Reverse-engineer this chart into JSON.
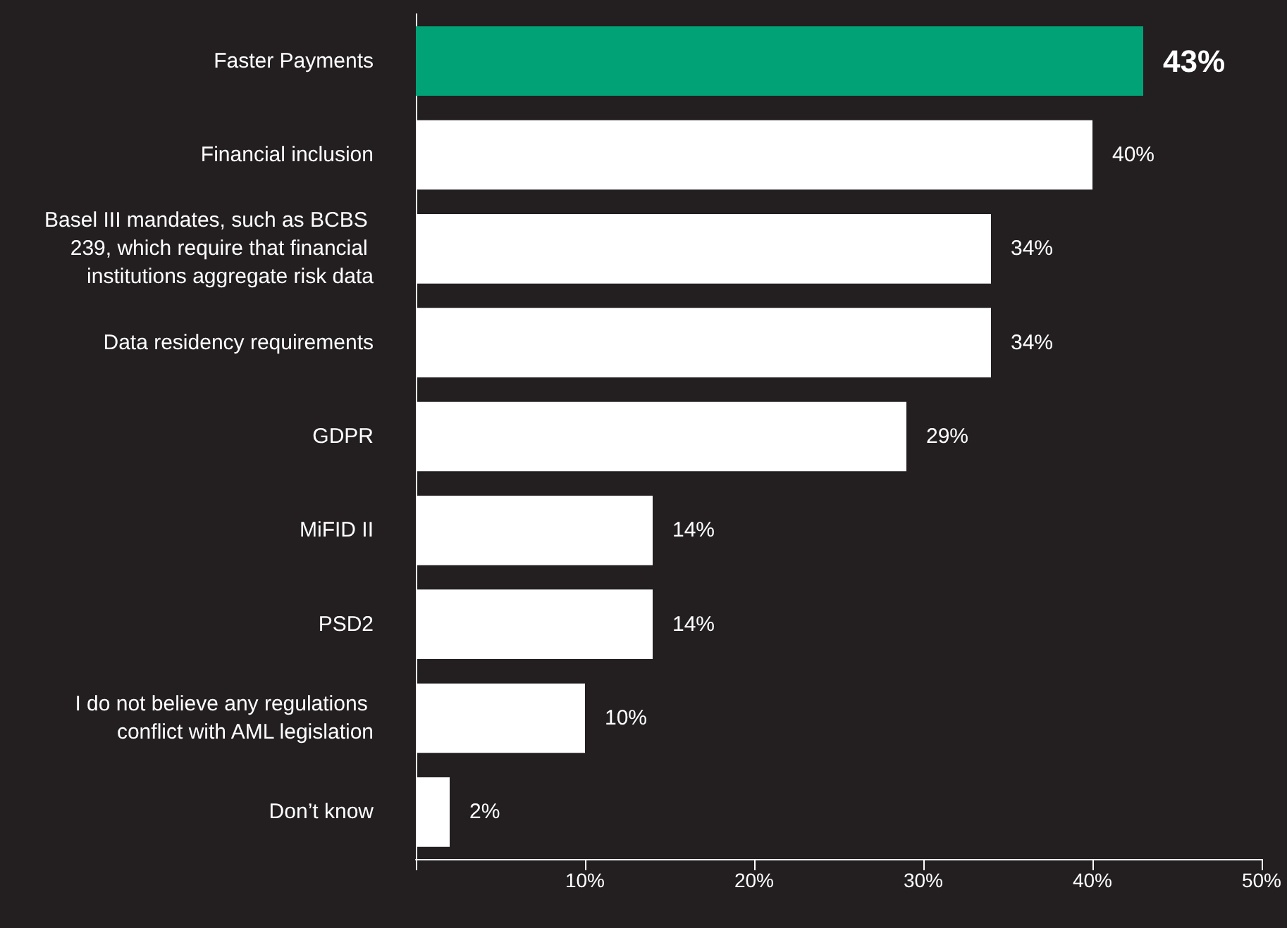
{
  "chart_data": {
    "type": "bar",
    "orientation": "horizontal",
    "categories": [
      "Faster Payments",
      "Financial inclusion",
      "Basel III mandates, such as BCBS 239, which require that financial institutions aggregate risk data",
      "Data residency requirements",
      "GDPR",
      "MiFID II",
      "PSD2",
      "I do not believe any regulations conflict with AML legislation",
      "Don’t know"
    ],
    "values": [
      43,
      40,
      34,
      34,
      29,
      14,
      14,
      10,
      2
    ],
    "colors": [
      "#00a276",
      "#ffffff",
      "#ffffff",
      "#ffffff",
      "#ffffff",
      "#ffffff",
      "#ffffff",
      "#ffffff",
      "#ffffff"
    ],
    "value_labels": [
      "43%",
      "40%",
      "34%",
      "34%",
      "29%",
      "14%",
      "14%",
      "10%",
      "2%"
    ],
    "xlim": [
      0,
      50
    ],
    "xticks": [
      {
        "value": 0,
        "label": null
      },
      {
        "value": 10,
        "label": "10%"
      },
      {
        "value": 20,
        "label": "20%"
      },
      {
        "value": 30,
        "label": "30%"
      },
      {
        "value": 40,
        "label": "40%"
      },
      {
        "value": 50,
        "label": "50%"
      }
    ],
    "grid": false
  }
}
